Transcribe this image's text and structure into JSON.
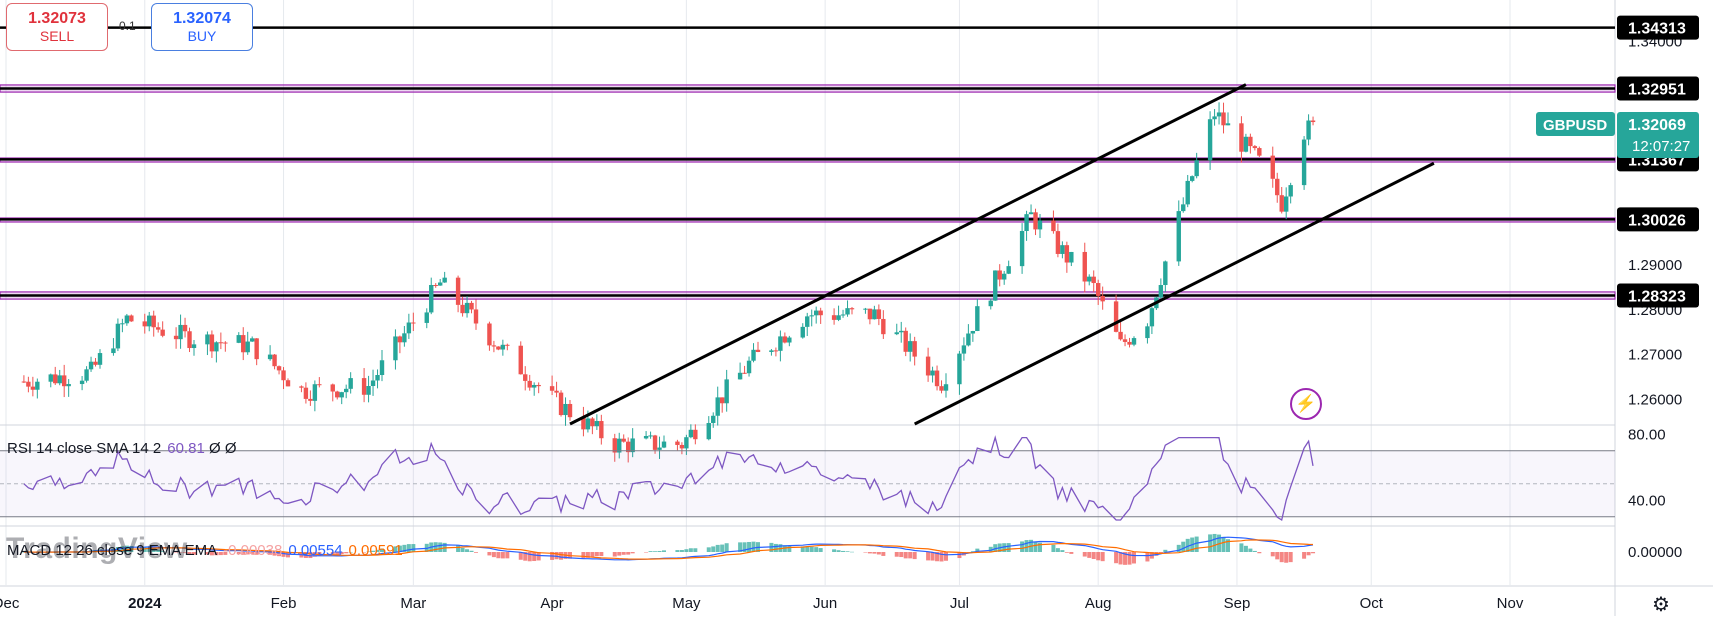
{
  "trade": {
    "sell": {
      "price": "1.32073",
      "label": "SELL"
    },
    "buy": {
      "price": "1.32074",
      "label": "BUY"
    },
    "spread": "0.1"
  },
  "symbol": {
    "name": "GBPUSD",
    "price": "1.32069",
    "countdown": "12:07:27",
    "color": "#26a69a"
  },
  "colors": {
    "up": "#26a69a",
    "down": "#ef5350",
    "hline": "#9c27b0",
    "rsi": "#7e57c2",
    "macd": "#2962ff",
    "signal": "#ff6d00"
  },
  "indicators": {
    "rsi_legend": {
      "name": "RSI 14 close SMA 14 2",
      "value": "60.81",
      "na1": "Ø",
      "na2": "Ø"
    },
    "macd_legend": {
      "name": "MACD 12 26 close 9 EMA EMA",
      "hist": "-0.00038",
      "macd": "0.00554",
      "signal": "0.00591"
    }
  },
  "watermark": "TradingView",
  "chart_data": [
    {
      "type": "candlestick",
      "title": "GBPUSD",
      "x_ticks": [
        {
          "label": "Dec",
          "date": "2023-12-01"
        },
        {
          "label": "2024",
          "date": "2024-01-01"
        },
        {
          "label": "Feb",
          "date": "2024-02-01"
        },
        {
          "label": "Mar",
          "date": "2024-03-01"
        },
        {
          "label": "Apr",
          "date": "2024-04-01"
        },
        {
          "label": "May",
          "date": "2024-05-01"
        },
        {
          "label": "Jun",
          "date": "2024-06-01"
        },
        {
          "label": "Jul",
          "date": "2024-07-01"
        },
        {
          "label": "Aug",
          "date": "2024-08-01"
        },
        {
          "label": "Sep",
          "date": "2024-09-01"
        },
        {
          "label": "Oct",
          "date": "2024-10-01"
        },
        {
          "label": "Nov",
          "date": "2024-11-01"
        }
      ],
      "y_ticks": [
        "1.26000",
        "1.27000",
        "1.28000",
        "1.29000",
        "1.34000"
      ],
      "y_range": [
        1.2545,
        1.3493
      ],
      "horizontal_levels": [
        {
          "label": "1.34313",
          "value": 1.34313,
          "band": 0.0
        },
        {
          "label": "1.32951",
          "value": 1.32951,
          "band": 0.0008
        },
        {
          "label": "1.31367",
          "value": 1.31367,
          "band": 0.0003
        },
        {
          "label": "1.30026",
          "value": 1.30026,
          "band": 0.0003
        },
        {
          "label": "1.28323",
          "value": 1.28323,
          "band": 0.0008
        }
      ],
      "trendlines": [
        {
          "from": [
            "2024-04-05",
            1.2545
          ],
          "to": [
            "2024-09-03",
            1.3304
          ]
        },
        {
          "from": [
            "2024-06-21",
            1.2545
          ],
          "to": [
            "2024-10-15",
            1.3128
          ]
        }
      ],
      "price_anchors": [
        {
          "date": "2023-12-05",
          "price": 1.264
        },
        {
          "date": "2023-12-20",
          "price": 1.266
        },
        {
          "date": "2023-12-28",
          "price": 1.278
        },
        {
          "date": "2024-01-10",
          "price": 1.274
        },
        {
          "date": "2024-01-25",
          "price": 1.272
        },
        {
          "date": "2024-02-05",
          "price": 1.262
        },
        {
          "date": "2024-02-20",
          "price": 1.263
        },
        {
          "date": "2024-03-07",
          "price": 1.286
        },
        {
          "date": "2024-03-20",
          "price": 1.272
        },
        {
          "date": "2024-04-01",
          "price": 1.26
        },
        {
          "date": "2024-04-15",
          "price": 1.25
        },
        {
          "date": "2024-04-30",
          "price": 1.25
        },
        {
          "date": "2024-05-15",
          "price": 1.268
        },
        {
          "date": "2024-05-28",
          "price": 1.279
        },
        {
          "date": "2024-06-12",
          "price": 1.279
        },
        {
          "date": "2024-06-27",
          "price": 1.264
        },
        {
          "date": "2024-07-05",
          "price": 1.279
        },
        {
          "date": "2024-07-17",
          "price": 1.301
        },
        {
          "date": "2024-07-31",
          "price": 1.285
        },
        {
          "date": "2024-08-06",
          "price": 1.272
        },
        {
          "date": "2024-08-12",
          "price": 1.278
        },
        {
          "date": "2024-08-22",
          "price": 1.31
        },
        {
          "date": "2024-08-27",
          "price": 1.324
        },
        {
          "date": "2024-09-06",
          "price": 1.313
        },
        {
          "date": "2024-09-11",
          "price": 1.304
        },
        {
          "date": "2024-09-16",
          "price": 1.32
        },
        {
          "date": "2024-09-18",
          "price": 1.3207
        }
      ]
    },
    {
      "type": "line",
      "title": "RSI 14 close SMA 14 2",
      "y_ticks": [
        "80.00",
        "40.00"
      ],
      "y_range": [
        25,
        85
      ],
      "bands": [
        70,
        30
      ],
      "mid": 50,
      "last": 60.81
    },
    {
      "type": "line",
      "title": "MACD 12 26 close 9 EMA EMA",
      "y_ticks": [
        "0.00000"
      ],
      "series": [
        {
          "name": "MACD",
          "last": 0.00554
        },
        {
          "name": "Signal",
          "last": 0.00591
        },
        {
          "name": "Histogram",
          "last": -0.00038
        }
      ]
    }
  ]
}
